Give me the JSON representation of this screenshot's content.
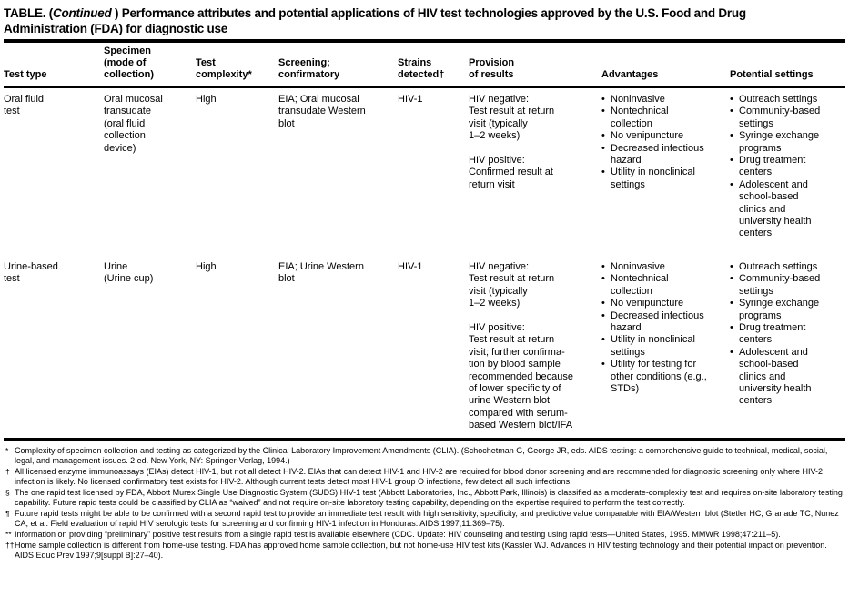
{
  "title": {
    "prefix": "TABLE. (",
    "continued": "Continued",
    "suffix_line1": " ) Performance attributes and potential applications of HIV test technologies approved by the U.S. Food and Drug",
    "line2": "Administration (FDA) for diagnostic use"
  },
  "columns": [
    "Test type",
    "Specimen\n(mode of\ncollection)",
    "Test\ncomplexity*",
    "Screening;\nconfirmatory",
    "Strains\ndetected†",
    "Provision\nof results",
    "Advantages",
    "Potential settings"
  ],
  "bullet": "•",
  "rows": [
    {
      "test_type": "Oral fluid\ntest",
      "specimen": "Oral mucosal\ntransudate\n(oral fluid\ncollection\ndevice)",
      "complexity": "High",
      "screening": "EIA; Oral mucosal\ntransudate Western\nblot",
      "strains": "HIV-1",
      "provision": "HIV negative:\nTest result at return\nvisit (typically\n1–2 weeks)\n\nHIV positive:\nConfirmed result at\nreturn visit",
      "advantages": [
        "Noninvasive",
        "Nontechnical\ncollection",
        "No venipuncture",
        "Decreased infectious\nhazard",
        "Utility in nonclinical\nsettings"
      ],
      "settings": [
        "Outreach settings",
        "Community-based\nsettings",
        "Syringe exchange\nprograms",
        "Drug treatment\ncenters",
        "Adolescent and\nschool-based\nclinics and\nuniversity health\ncenters"
      ]
    },
    {
      "test_type": "Urine-based\ntest",
      "specimen": "Urine\n(Urine cup)",
      "complexity": "High",
      "screening": "EIA; Urine Western\nblot",
      "strains": "HIV-1",
      "provision": "HIV negative:\nTest result at return\nvisit (typically\n1–2 weeks)\n\nHIV positive:\nTest result at return\nvisit; further confirma-\ntion by blood sample\nrecommended because\nof lower specificity of\nurine Western blot\ncompared with serum-\nbased Western blot/IFA",
      "advantages": [
        "Noninvasive",
        "Nontechnical\ncollection",
        "No venipuncture",
        "Decreased infectious\nhazard",
        "Utility in nonclinical\nsettings",
        "Utility for testing for\nother conditions (e.g.,\nSTDs)"
      ],
      "settings": [
        "Outreach settings",
        "Community-based\nsettings",
        "Syringe exchange\nprograms",
        "Drug treatment\ncenters",
        "Adolescent and\nschool-based\nclinics and\nuniversity health\ncenters"
      ]
    }
  ],
  "footnotes": [
    {
      "marker": "*",
      "text": "Complexity of specimen collection and testing as categorized by the Clinical Laboratory Improvement Amendments (CLIA). (Schochetman G, George JR, eds. AIDS testing: a comprehensive guide to technical, medical, social, legal, and management issues. 2 ed. New York, NY: Springer-Verlag, 1994.)"
    },
    {
      "marker": "†",
      "text": "All licensed enzyme immunoassays (EIAs) detect HIV-1, but not all detect HIV-2. EIAs that can detect HIV-1 and HIV-2 are required for blood donor screening and are recommended for diagnostic screening only where HIV-2 infection is likely. No licensed confirmatory test exists for HIV-2. Although current tests detect most HIV-1 group O infections, few detect all such infections."
    },
    {
      "marker": "§",
      "text": "The one rapid test licensed by FDA, Abbott Murex Single Use Diagnostic System (SUDS) HIV-1 test (Abbott Laboratories, Inc., Abbott Park, Illinois) is classified as a moderate-complexity test and requires on-site laboratory testing capability. Future rapid tests could be classified by CLIA as “waived” and not require on-site laboratory testing capability, depending on the expertise required to perform the test correctly."
    },
    {
      "marker": "¶",
      "text": "Future rapid tests might be able to be confirmed with a second rapid test to provide an immediate test result with high sensitivity, specificity, and predictive value comparable with EIA/Western blot (Stetler HC, Granade TC, Nunez CA, et al. Field evaluation of rapid HIV serologic tests for screening and confirming HIV-1 infection in Honduras. AIDS 1997;11:369–75)."
    },
    {
      "marker": "**",
      "text": "Information on providing “preliminary” positive test results from a single rapid test is available elsewhere (CDC. Update: HIV counseling and testing using rapid tests—United States, 1995. MMWR 1998;47:211–5)."
    },
    {
      "marker": "††",
      "text": "Home sample collection is different from home-use testing. FDA has approved home sample collection, but not home-use HIV test kits (Kassler WJ. Advances in HIV testing technology and their potential impact on prevention. AIDS Educ Prev 1997;9[suppl B]:27–40)."
    }
  ],
  "colors": {
    "text": "#000000",
    "background": "#ffffff",
    "rule": "#000000"
  }
}
